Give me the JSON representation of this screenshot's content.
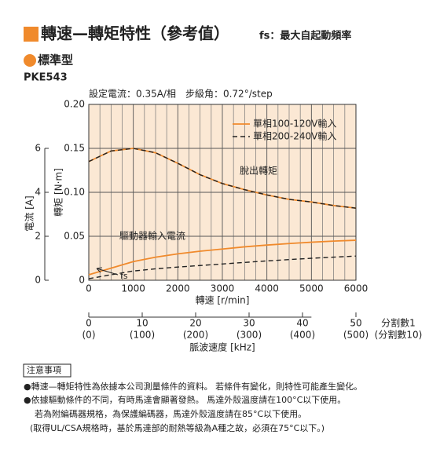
{
  "header": {
    "title": "轉速—轉矩特性（參考值）",
    "fs_note": "fs：最大自起動頻率",
    "subtitle": "標準型",
    "model": "PKE543"
  },
  "chart_data": {
    "type": "line",
    "title": "設定電流：0.35A/相　步級角：0.72°/step",
    "xlabel": "轉速 [r/min]",
    "ylabel": "轉矩 [N·m]",
    "y2label": "電流 [A]",
    "x": [
      0,
      500,
      1000,
      1500,
      2000,
      2500,
      3000,
      3500,
      4000,
      4500,
      5000,
      5500,
      6000
    ],
    "series": [
      {
        "name": "單相100-120V輸入",
        "color": "#f08a2c",
        "dashed": false,
        "values": [
          0.135,
          0.147,
          0.15,
          0.145,
          0.133,
          0.12,
          0.11,
          0.103,
          0.097,
          0.092,
          0.089,
          0.085,
          0.082
        ],
        "y2_values": [
          0.25,
          0.55,
          0.85,
          1.05,
          1.2,
          1.32,
          1.42,
          1.52,
          1.6,
          1.67,
          1.73,
          1.78,
          1.82
        ]
      },
      {
        "name": "單相200-240V輸入",
        "color": "#222222",
        "dashed": true,
        "values": [
          0.135,
          0.147,
          0.15,
          0.145,
          0.133,
          0.12,
          0.11,
          0.103,
          0.097,
          0.092,
          0.089,
          0.085,
          0.082
        ],
        "y2_values": [
          0.07,
          0.25,
          0.42,
          0.52,
          0.6,
          0.67,
          0.74,
          0.81,
          0.88,
          0.94,
          1.0,
          1.05,
          1.1
        ]
      }
    ],
    "xlim": [
      0,
      6000
    ],
    "xticks": [
      0,
      1000,
      2000,
      3000,
      4000,
      5000,
      6000
    ],
    "xgrid": [
      250,
      500,
      750,
      1250,
      1500,
      1750,
      2250,
      2500,
      2750,
      3250,
      3500,
      3750,
      4250,
      4500,
      4750,
      5250,
      5500,
      5750
    ],
    "ylim": [
      0,
      0.2
    ],
    "yticks": [
      0,
      0.05,
      {
        "value": 0.1,
        "label": "0.10"
      },
      0.15,
      {
        "value": 0.2,
        "label": "0.20"
      }
    ],
    "y2lim": [
      0,
      8
    ],
    "y2ticks": [
      0,
      2,
      4,
      6
    ],
    "x2label": "脈波速度 [kHz]",
    "x2lim": [
      0,
      60
    ],
    "x2ticks": [
      0,
      10,
      20,
      30,
      40,
      50
    ],
    "x2tick_labels_div10": [
      "(0)",
      "(100)",
      "(200)",
      "(300)",
      "(400)",
      "(500)"
    ],
    "x2_division_labels": [
      "分割數1",
      "(分割數10)"
    ],
    "annotations": [
      "脫出轉矩",
      "驅動器輸入電流",
      "fs"
    ],
    "grid": true,
    "legend": "upper right",
    "background": "#fbe8d4"
  },
  "notes": {
    "title": "注意事項",
    "lines": [
      "●轉速—轉矩特性為依據本公司測量條件的資料。 若條件有變化，則特性可能產生變化。",
      "●依據驅動條件的不同，有時馬達會顯著發熱。 馬達外殼溫度請在100°C以下使用。",
      "若為附編碼器規格，為保護編碼器，馬達外殼溫度請在85°C以下使用。",
      "(取得UL/CSA規格時，基於馬達部的耐熱等級為A種之故，必須在75°C以下。)"
    ]
  }
}
